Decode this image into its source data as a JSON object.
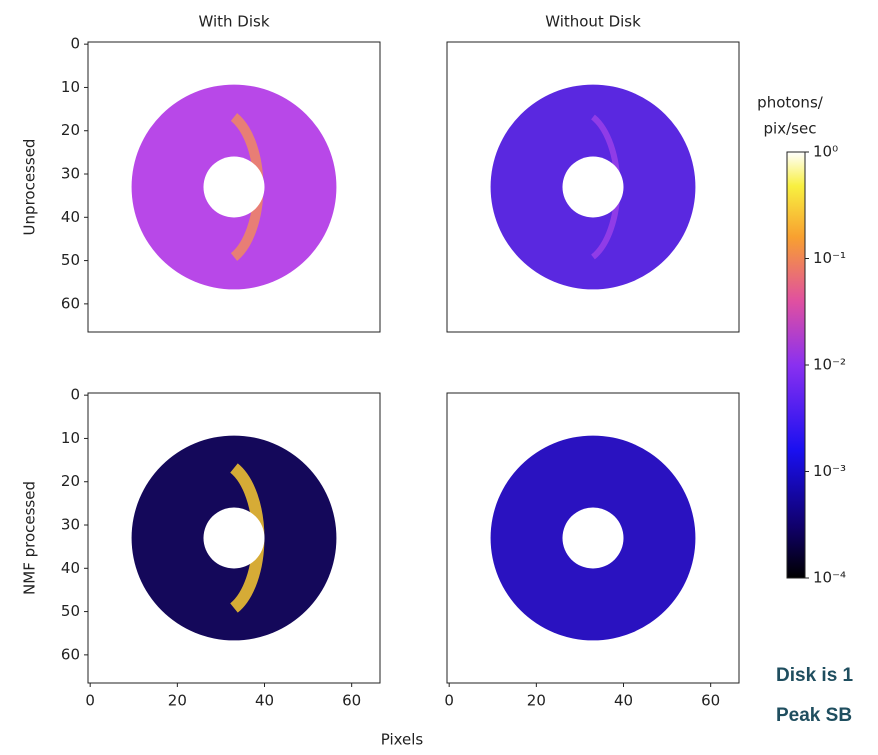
{
  "chart_data": [
    {
      "type": "image",
      "title": "With Disk",
      "ylabel": "Unprocessed",
      "xlim": [
        -0.5,
        66.5
      ],
      "ylim": [
        66.5,
        -0.5
      ],
      "xticks": [],
      "yticks": [
        0,
        10,
        20,
        30,
        40,
        50,
        60
      ]
    },
    {
      "type": "image",
      "title": "Without Disk",
      "xlim": [
        -0.5,
        66.5
      ],
      "ylim": [
        66.5,
        -0.5
      ],
      "xticks": [],
      "yticks": []
    },
    {
      "type": "image",
      "ylabel": "NMF processed",
      "xlim": [
        -0.5,
        66.5
      ],
      "ylim": [
        66.5,
        -0.5
      ],
      "xticks": [
        0,
        20,
        40,
        60
      ],
      "yticks": [
        0,
        10,
        20,
        30,
        40,
        50,
        60
      ]
    },
    {
      "type": "image",
      "xlim": [
        -0.5,
        66.5
      ],
      "ylim": [
        66.5,
        -0.5
      ],
      "xticks": [
        0,
        20,
        40,
        60
      ],
      "yticks": []
    }
  ],
  "xlabel": "Pixels",
  "colorbar": {
    "label": [
      "photons/",
      "pix/sec"
    ],
    "log": true,
    "lim": [
      0.0001,
      1
    ],
    "ticks": [
      {
        "value": 1,
        "label": "10⁰"
      },
      {
        "value": 0.1,
        "label": "10⁻¹"
      },
      {
        "value": 0.01,
        "label": "10⁻²"
      },
      {
        "value": 0.001,
        "label": "10⁻³"
      },
      {
        "value": 0.0001,
        "label": "10⁻⁴"
      }
    ]
  },
  "notes": [
    "Disk is 1",
    "Peak SB"
  ]
}
